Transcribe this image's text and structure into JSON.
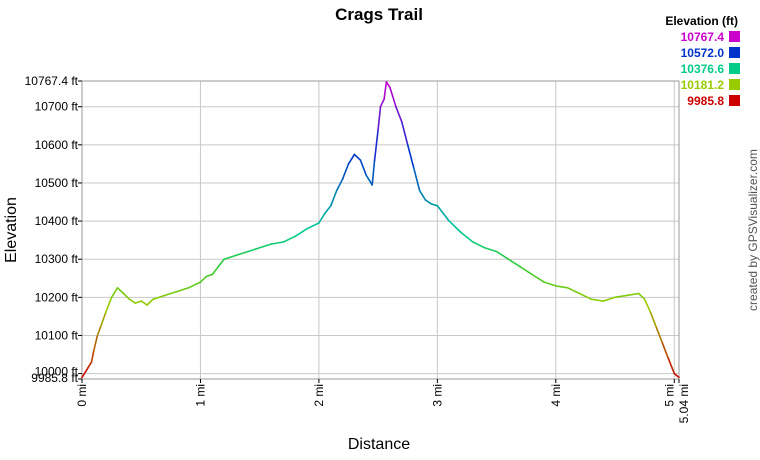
{
  "chart_data": {
    "type": "line",
    "title": "Crags Trail",
    "xlabel": "Distance",
    "ylabel": "Elevation",
    "xlim": [
      0,
      5.04
    ],
    "ylim": [
      9985.8,
      10767.4
    ],
    "grid": true,
    "x_ticks": [
      {
        "value": 0,
        "label": "0 mi"
      },
      {
        "value": 1,
        "label": "1 mi"
      },
      {
        "value": 2,
        "label": "2 mi"
      },
      {
        "value": 3,
        "label": "3 mi"
      },
      {
        "value": 4,
        "label": "4 mi"
      },
      {
        "value": 5,
        "label": "5 mi"
      },
      {
        "value": 5.04,
        "label": "5.04 mi"
      }
    ],
    "y_ticks": [
      {
        "value": 9985.8,
        "label": "9985.8 ft"
      },
      {
        "value": 10000,
        "label": "10000 ft"
      },
      {
        "value": 10100,
        "label": "10100 ft"
      },
      {
        "value": 10200,
        "label": "10200 ft"
      },
      {
        "value": 10300,
        "label": "10300 ft"
      },
      {
        "value": 10400,
        "label": "10400 ft"
      },
      {
        "value": 10500,
        "label": "10500 ft"
      },
      {
        "value": 10600,
        "label": "10600 ft"
      },
      {
        "value": 10700,
        "label": "10700 ft"
      },
      {
        "value": 10767.4,
        "label": "10767.4 ft"
      }
    ],
    "legend": {
      "title": "Elevation (ft)",
      "placement": "top-right",
      "entries": [
        {
          "label": "10767.4",
          "color": "#cc00cc"
        },
        {
          "label": "10572.0",
          "color": "#0033cc"
        },
        {
          "label": "10376.6",
          "color": "#00cc88"
        },
        {
          "label": "10181.2",
          "color": "#99cc00"
        },
        {
          "label": "9985.8",
          "color": "#cc0000"
        }
      ]
    },
    "color_scale": [
      {
        "value": 9985.8,
        "color": "#cc0000"
      },
      {
        "value": 10181.2,
        "color": "#99cc00"
      },
      {
        "value": 10278.9,
        "color": "#33cc33"
      },
      {
        "value": 10376.6,
        "color": "#00cc99"
      },
      {
        "value": 10572.0,
        "color": "#0033cc"
      },
      {
        "value": 10767.4,
        "color": "#cc00cc"
      }
    ],
    "series": [
      {
        "x": [
          0,
          0.02,
          0.05,
          0.08,
          0.1,
          0.13,
          0.16,
          0.2,
          0.25,
          0.3,
          0.35,
          0.4,
          0.45,
          0.5,
          0.55,
          0.6,
          0.7,
          0.8,
          0.9,
          1.0,
          1.05,
          1.1,
          1.15,
          1.2,
          1.3,
          1.4,
          1.5,
          1.6,
          1.7,
          1.8,
          1.9,
          2.0,
          2.05,
          2.1,
          2.15,
          2.2,
          2.25,
          2.3,
          2.35,
          2.4,
          2.45,
          2.47,
          2.5,
          2.52,
          2.55,
          2.57,
          2.6,
          2.65,
          2.7,
          2.75,
          2.8,
          2.85,
          2.9,
          2.95,
          3.0,
          3.1,
          3.2,
          3.3,
          3.4,
          3.5,
          3.6,
          3.7,
          3.8,
          3.9,
          4.0,
          4.1,
          4.2,
          4.3,
          4.4,
          4.5,
          4.6,
          4.7,
          4.75,
          4.8,
          4.85,
          4.9,
          4.95,
          5.0,
          5.04
        ],
        "values": [
          9990,
          10000,
          10015,
          10030,
          10060,
          10100,
          10125,
          10160,
          10200,
          10225,
          10210,
          10195,
          10185,
          10190,
          10180,
          10195,
          10205,
          10215,
          10225,
          10240,
          10255,
          10260,
          10280,
          10300,
          10310,
          10320,
          10330,
          10340,
          10345,
          10360,
          10380,
          10395,
          10420,
          10440,
          10480,
          10510,
          10550,
          10575,
          10560,
          10520,
          10495,
          10560,
          10640,
          10700,
          10720,
          10765,
          10750,
          10700,
          10660,
          10600,
          10540,
          10480,
          10455,
          10445,
          10440,
          10400,
          10370,
          10345,
          10330,
          10320,
          10300,
          10280,
          10260,
          10240,
          10230,
          10225,
          10210,
          10195,
          10190,
          10200,
          10205,
          10210,
          10195,
          10160,
          10120,
          10080,
          10040,
          10000,
          9990
        ]
      }
    ],
    "credit": "created by GPSVisualizer.com"
  }
}
